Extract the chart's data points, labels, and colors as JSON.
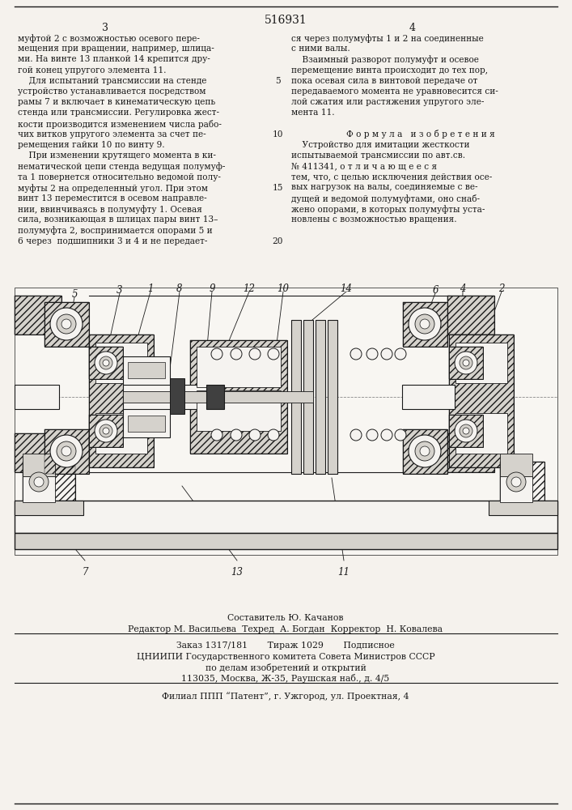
{
  "patent_number": "516931",
  "page_left": "3",
  "page_right": "4",
  "bg": "#f5f2ed",
  "dark": "#1a1a1a",
  "left_col_lines": [
    "муфтой 2 с возможностью осевого пере-",
    "мещения при вращении, например, шлица-",
    "ми. На винте 13 планкой 14 крепится дру-",
    "гой конец упругого элемента 11.",
    "    Для испытаний трансмиссии на стенде",
    "устройство устанавливается посредством",
    "рамы 7 и включает в кинематическую цепь",
    "стенда или трансмиссии. Регулировка жест-",
    "кости производится изменением числа рабо-",
    "чих витков упругого элемента за счет пе-",
    "ремещения гайки 10 по винту 9.",
    "    При изменении крутящего момента в ки-",
    "нематической цепи стенда ведущая полумуф-",
    "та 1 повернется относительно ведомой полу-",
    "муфты 2 на определенный угол. При этом",
    "винт 13 переместится в осевом направле-",
    "нии, ввинчиваясь в полумуфту 1. Осевая",
    "сила, возникающая в шлицах пары винт 13–",
    "полумуфта 2, воспринимается опорами 5 и",
    "6 через  подшипники 3 и 4 и не передает-"
  ],
  "right_col_lines": [
    "ся через полумуфты 1 и 2 на соединенные",
    "с ними валы.",
    "    Взаимный разворот полумуфт и осевое",
    "перемещение винта происходит до тех пор,",
    "пока осевая сила в винтовой передаче от",
    "передаваемого момента не уравновесится си-",
    "лой сжатия или растяжения упругого эле-",
    "мента 11."
  ],
  "formula_title": "Ф о р м у л а   и з о б р е т е н и я",
  "formula_lines": [
    "    Устройство для имитации жесткости",
    "испытываемой трансмиссии по авт.св.",
    "№ 411341, о т л и ч а ю щ е е с я",
    "тем, что, с целью исключения действия осе-",
    "вых нагрузок на валы, соединяемые с ве-",
    "дущей и ведомой полумуфтами, оно снаб-",
    "жено опорами, в которых полумуфты уста-",
    "новлены с возможностью вращения."
  ],
  "footer_lines": [
    "Составитель Ю. Качанов",
    "Редактор М. Васильева  Техред  А. Богдан  Корректор  Н. Ковалева",
    "Заказ 1317/181       Тираж 1029       Подписное",
    "ЦНИИПИ Государственного комитета Совета Министров СССР",
    "по делам изобретений и открытий",
    "113035, Москва, Ж-35, Раушская наб., д. 4/5",
    "Филиал ППП “Патент”, г. Ужгород, ул. Проектная, 4"
  ]
}
